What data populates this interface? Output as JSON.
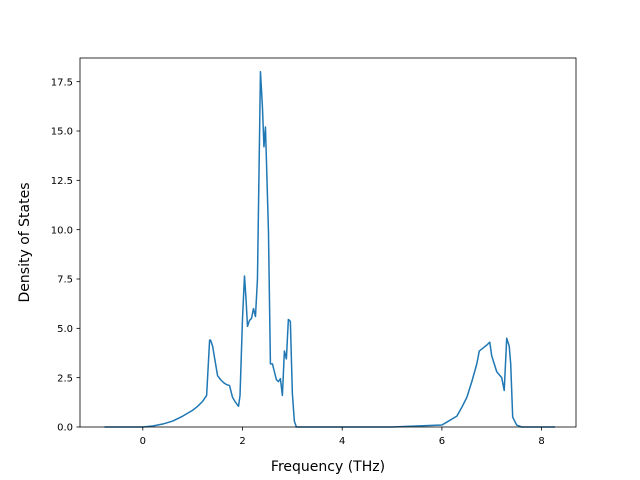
{
  "chart_data": {
    "type": "line",
    "title": "",
    "xlabel": "Frequency (THz)",
    "ylabel": "Density of States",
    "xlim": [
      -1.26,
      8.69
    ],
    "ylim": [
      0,
      18.7
    ],
    "x_ticks": [
      0,
      2,
      4,
      6,
      8
    ],
    "x_tick_labels": [
      "0",
      "2",
      "4",
      "6",
      "8"
    ],
    "y_ticks": [
      0,
      2.5,
      5,
      7.5,
      10,
      12.5,
      15,
      17.5
    ],
    "y_tick_labels": [
      "0.0",
      "2.5",
      "5.0",
      "7.5",
      "10.0",
      "12.5",
      "15.0",
      "17.5"
    ],
    "grid": false,
    "series": [
      {
        "color": "#1f77b4",
        "x": [
          -0.77,
          -0.4,
          -0.1,
          0.0,
          0.2,
          0.4,
          0.6,
          0.8,
          1.0,
          1.1,
          1.2,
          1.28,
          1.34,
          1.36,
          1.4,
          1.44,
          1.5,
          1.56,
          1.62,
          1.68,
          1.74,
          1.8,
          1.86,
          1.92,
          1.95,
          2.0,
          2.04,
          2.07,
          2.1,
          2.14,
          2.18,
          2.22,
          2.26,
          2.3,
          2.34,
          2.36,
          2.4,
          2.43,
          2.46,
          2.48,
          2.52,
          2.56,
          2.6,
          2.64,
          2.68,
          2.72,
          2.76,
          2.8,
          2.84,
          2.88,
          2.92,
          2.96,
          3.0,
          3.04,
          3.08,
          3.12,
          3.2,
          4.0,
          5.0,
          6.0,
          6.1,
          6.2,
          6.3,
          6.4,
          6.5,
          6.6,
          6.7,
          6.75,
          6.8,
          6.85,
          6.9,
          6.96,
          7.0,
          7.05,
          7.1,
          7.15,
          7.2,
          7.25,
          7.3,
          7.35,
          7.38,
          7.42,
          7.5,
          7.6,
          8.0,
          8.27
        ],
        "y": [
          0.0,
          0.0,
          0.0,
          0.0,
          0.05,
          0.15,
          0.3,
          0.55,
          0.85,
          1.05,
          1.3,
          1.6,
          4.4,
          4.4,
          4.1,
          3.5,
          2.6,
          2.4,
          2.25,
          2.15,
          2.1,
          1.5,
          1.25,
          1.05,
          1.6,
          5.5,
          7.65,
          6.5,
          5.1,
          5.4,
          5.5,
          6.0,
          5.6,
          7.5,
          14.5,
          18.0,
          16.2,
          14.2,
          15.2,
          13.5,
          10.0,
          3.2,
          3.2,
          2.8,
          2.4,
          2.3,
          2.45,
          1.6,
          3.85,
          3.45,
          5.45,
          5.35,
          1.7,
          0.3,
          0.0,
          0.0,
          0.0,
          0.0,
          0.0,
          0.1,
          0.25,
          0.4,
          0.55,
          1.0,
          1.5,
          2.3,
          3.2,
          3.85,
          3.95,
          4.05,
          4.15,
          4.3,
          3.6,
          3.2,
          2.8,
          2.65,
          2.5,
          1.85,
          4.5,
          4.1,
          3.2,
          0.5,
          0.1,
          0.0,
          0.0,
          0.0
        ]
      }
    ]
  }
}
